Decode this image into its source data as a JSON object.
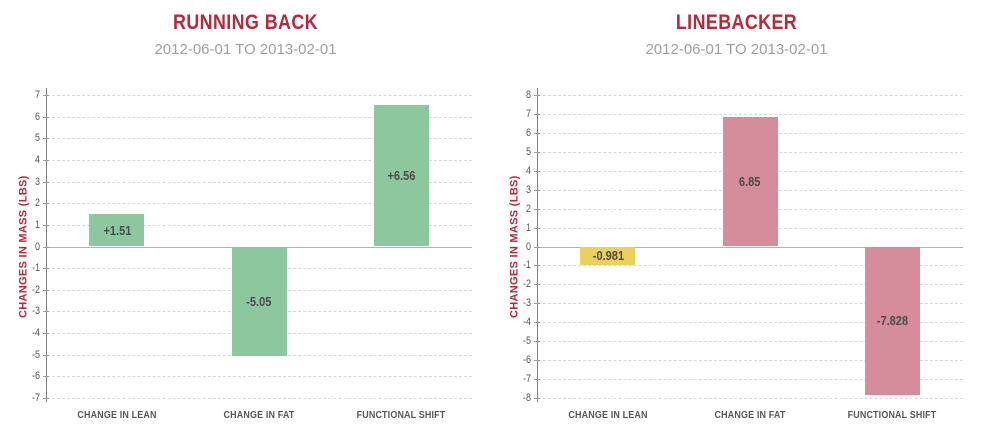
{
  "page": {
    "background": "#ffffff"
  },
  "chart_data": [
    {
      "type": "bar",
      "title": "RUNNING BACK",
      "subtitle": "2012-06-01 TO 2013-02-01",
      "ylabel": "CHANGES IN MASS (LBS)",
      "xlabel": "",
      "categories": [
        "CHANGE IN LEAN",
        "CHANGE IN FAT",
        "FUNCTIONAL SHIFT"
      ],
      "values": [
        1.51,
        -5.05,
        6.56
      ],
      "value_labels": [
        "+1.51",
        "-5.05",
        "+6.56"
      ],
      "bar_colors": [
        "#8dc79e",
        "#8dc79e",
        "#8dc79e"
      ],
      "ylim": [
        -7,
        7
      ],
      "ytick_step": 1,
      "grid": "horizontal-dashed",
      "legend": "none"
    },
    {
      "type": "bar",
      "title": "LINEBACKER",
      "subtitle": "2012-06-01 TO 2013-02-01",
      "ylabel": "CHANGES IN MASS (LBS)",
      "xlabel": "",
      "categories": [
        "CHANGE IN LEAN",
        "CHANGE IN FAT",
        "FUNCTIONAL SHIFT"
      ],
      "values": [
        -0.981,
        6.85,
        -7.828
      ],
      "value_labels": [
        "-0.981",
        "6.85",
        "-7.828"
      ],
      "bar_colors": [
        "#ecd05e",
        "#d68d9b",
        "#d68d9b"
      ],
      "ylim": [
        -8,
        8
      ],
      "ytick_step": 1,
      "grid": "horizontal-dashed",
      "legend": "none"
    }
  ],
  "colors": {
    "title": "#b5293a",
    "subtitle": "#9aa0a6",
    "ylabel": "#b5293a",
    "tick_label": "#55565a",
    "category_label": "#55565a",
    "value_label": "#4b4b4d",
    "gridline": "#d8d8d8",
    "zero_line": "#b3b3b3",
    "axis_spine": "#7f7f7f",
    "green": "#8dc79e",
    "yellow": "#ecd05e",
    "pink": "#d68d9b"
  }
}
